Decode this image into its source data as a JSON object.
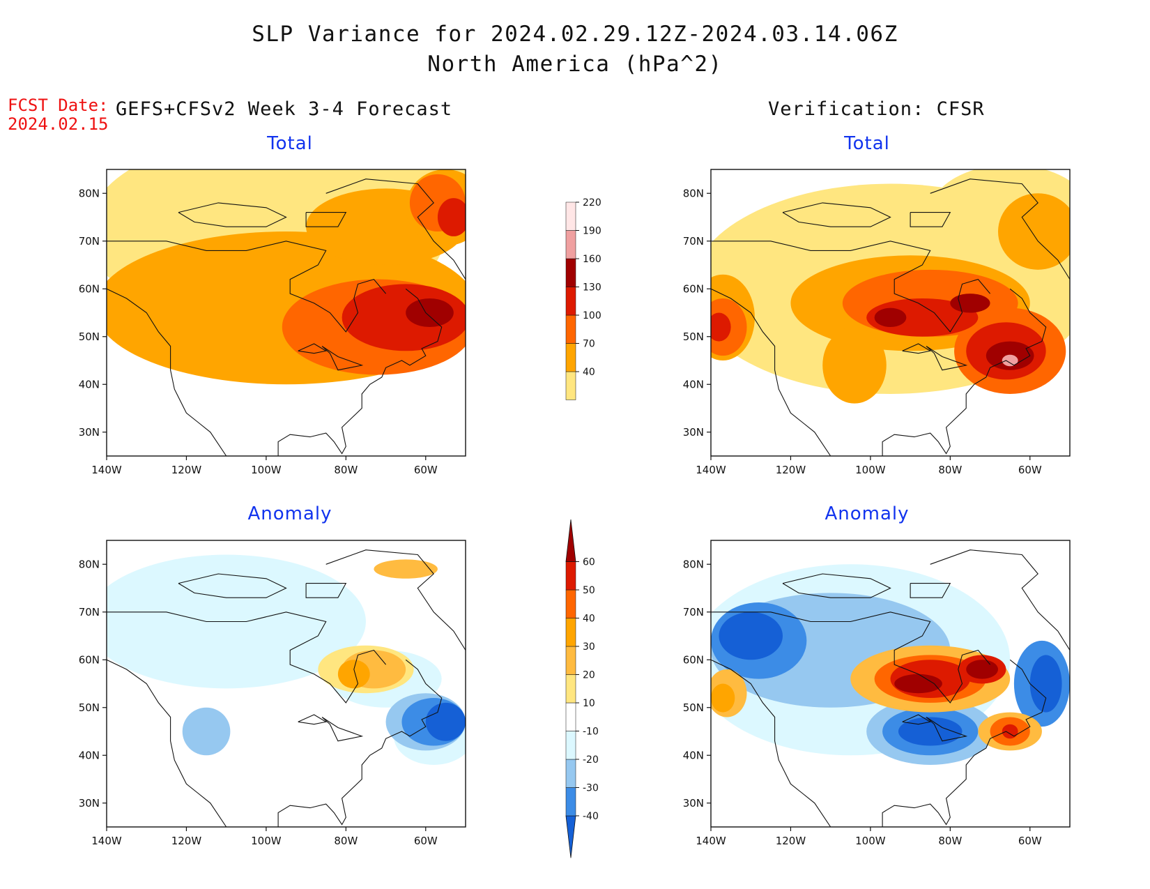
{
  "title_line1": "SLP Variance for 2024.02.29.12Z-2024.03.14.06Z",
  "title_line2": "North America (hPa^2)",
  "fcst_label": "FCST Date:",
  "fcst_date": "2024.02.15",
  "left_column_title": "GEFS+CFSv2 Week 3-4 Forecast",
  "right_column_title": "Verification: CFSR",
  "panels": [
    {
      "title": "Total",
      "kind": "total"
    },
    {
      "title": "Total",
      "kind": "total"
    },
    {
      "title": "Anomaly",
      "kind": "anomaly"
    },
    {
      "title": "Anomaly",
      "kind": "anomaly"
    }
  ],
  "map": {
    "lon_range": [
      -140,
      -50
    ],
    "lat_range": [
      25,
      85
    ],
    "lon_ticks": [
      "140W",
      "120W",
      "100W",
      "80W",
      "60W"
    ],
    "lat_ticks": [
      "30N",
      "40N",
      "50N",
      "60N",
      "70N",
      "80N"
    ]
  },
  "colorbars": {
    "total": {
      "labels": [
        "40",
        "70",
        "100",
        "130",
        "160",
        "190",
        "220"
      ],
      "colors": [
        "#ffe680",
        "#ffa500",
        "#ff6600",
        "#dd1a00",
        "#a00000",
        "#f0a0a0",
        "#ffe6e6"
      ]
    },
    "anomaly": {
      "labels": [
        "-40",
        "-30",
        "-20",
        "-10",
        "10",
        "20",
        "30",
        "40",
        "50",
        "60"
      ],
      "colors": [
        "#1560d6",
        "#3c8ce6",
        "#96c8f0",
        "#dcf8ff",
        "#ffffff",
        "#ffe680",
        "#ffbb40",
        "#ffa500",
        "#ff6600",
        "#dd1a00",
        "#a00000"
      ]
    }
  }
}
